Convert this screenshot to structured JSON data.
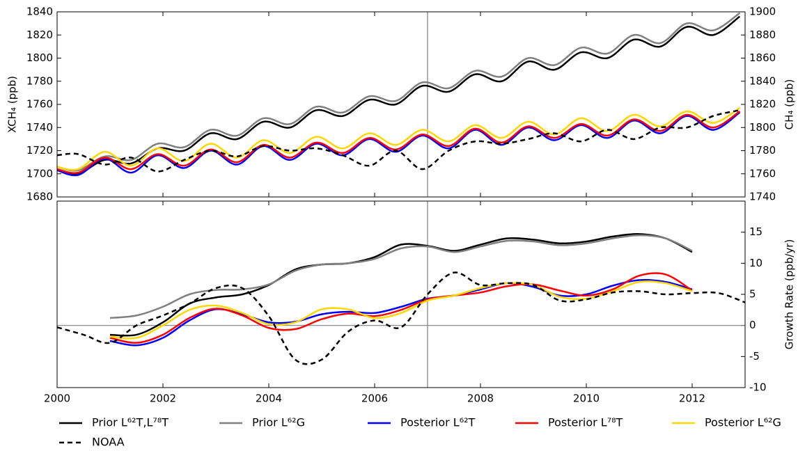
{
  "chart_data": [
    {
      "type": "line",
      "ylabel": "XCH₄ (ppb)",
      "y2label": "CH₄ (ppb)",
      "xlim": [
        2000,
        2013
      ],
      "xticks": [
        2000,
        2002,
        2004,
        2006,
        2008,
        2010,
        2012
      ],
      "show_xtick_labels": false,
      "ylim": [
        1680,
        1840
      ],
      "yticks": [
        1680,
        1700,
        1720,
        1740,
        1760,
        1780,
        1800,
        1820,
        1840
      ],
      "y2lim": [
        1740,
        1900
      ],
      "y2ticks": [
        1740,
        1760,
        1780,
        1800,
        1820,
        1840,
        1860,
        1880,
        1900
      ],
      "vline": 2007,
      "x": [
        2000.0,
        2000.4,
        2000.9,
        2001.4,
        2001.9,
        2002.4,
        2002.9,
        2003.4,
        2003.9,
        2004.4,
        2004.9,
        2005.4,
        2005.9,
        2006.4,
        2006.9,
        2007.4,
        2007.9,
        2008.4,
        2008.9,
        2009.4,
        2009.9,
        2010.4,
        2010.9,
        2011.4,
        2011.9,
        2012.4,
        2012.9
      ],
      "legend": "below",
      "series": [
        {
          "name": "Prior L⁶²T,L⁷⁸T",
          "color": "#000000",
          "dash": false,
          "values": [
            1703,
            1700,
            1712,
            1709,
            1722,
            1720,
            1735,
            1730,
            1745,
            1740,
            1755,
            1750,
            1764,
            1760,
            1776,
            1771,
            1786,
            1780,
            1797,
            1790,
            1805,
            1800,
            1816,
            1810,
            1827,
            1820,
            1836
          ]
        },
        {
          "name": "Prior L⁶²G",
          "color": "#808080",
          "dash": false,
          "values": [
            1706,
            1703,
            1715,
            1712,
            1726,
            1723,
            1738,
            1733,
            1748,
            1743,
            1758,
            1753,
            1767,
            1763,
            1779,
            1774,
            1789,
            1784,
            1800,
            1794,
            1809,
            1804,
            1820,
            1813,
            1830,
            1824,
            1839
          ]
        },
        {
          "name": "Posterior L⁶²T",
          "color": "#0000ff",
          "dash": false,
          "values": [
            1703,
            1699,
            1713,
            1701,
            1716,
            1705,
            1720,
            1708,
            1724,
            1712,
            1726,
            1716,
            1730,
            1719,
            1733,
            1722,
            1738,
            1725,
            1740,
            1729,
            1742,
            1731,
            1746,
            1735,
            1750,
            1738,
            1753
          ]
        },
        {
          "name": "Posterior L⁷⁸T",
          "color": "#ff0000",
          "dash": false,
          "values": [
            1704,
            1701,
            1714,
            1704,
            1717,
            1707,
            1721,
            1710,
            1725,
            1714,
            1727,
            1718,
            1731,
            1721,
            1734,
            1724,
            1739,
            1727,
            1741,
            1731,
            1743,
            1733,
            1747,
            1737,
            1751,
            1740,
            1754
          ]
        },
        {
          "name": "Posterior L⁶²G",
          "color": "#ffd700",
          "dash": false,
          "values": [
            1706,
            1704,
            1719,
            1707,
            1722,
            1711,
            1726,
            1714,
            1729,
            1718,
            1732,
            1722,
            1735,
            1725,
            1738,
            1728,
            1742,
            1731,
            1745,
            1734,
            1748,
            1737,
            1751,
            1741,
            1754,
            1744,
            1757
          ]
        },
        {
          "name": "NOAA",
          "color": "#000000",
          "dash": true,
          "axis": "y2",
          "values": [
            1776,
            1777,
            1768,
            1774,
            1762,
            1772,
            1780,
            1775,
            1784,
            1780,
            1782,
            1776,
            1767,
            1780,
            1764,
            1780,
            1788,
            1786,
            1790,
            1795,
            1788,
            1798,
            1790,
            1800,
            1800,
            1810,
            1815
          ]
        }
      ]
    },
    {
      "type": "line",
      "y2label": "Growth Rate (ppb/yr)",
      "xlim": [
        2000,
        2013
      ],
      "xticks": [
        2000,
        2002,
        2004,
        2006,
        2008,
        2010,
        2012
      ],
      "show_xtick_labels": true,
      "y2lim": [
        -10,
        20
      ],
      "y2ticks": [
        -10,
        -5,
        0,
        5,
        10,
        15
      ],
      "vline": 2007,
      "hline": 0,
      "x": [
        2000.0,
        2000.5,
        2001.0,
        2001.5,
        2002.0,
        2002.5,
        2003.0,
        2003.5,
        2004.0,
        2004.5,
        2005.0,
        2005.5,
        2006.0,
        2006.5,
        2007.0,
        2007.5,
        2008.0,
        2008.5,
        2009.0,
        2009.5,
        2010.0,
        2010.5,
        2011.0,
        2011.5,
        2012.0,
        2012.5,
        2013.0
      ],
      "series": [
        {
          "color": "#000000",
          "dash": false,
          "axis": "y2",
          "values": [
            null,
            null,
            -1.5,
            -1.5,
            0.5,
            3.5,
            4.5,
            5,
            6.5,
            9,
            9.8,
            10,
            11,
            13,
            12.8,
            12,
            13,
            14,
            13.8,
            13.2,
            13.5,
            14.3,
            14.7,
            14,
            11.8,
            null,
            null
          ]
        },
        {
          "color": "#808080",
          "dash": false,
          "axis": "y2",
          "values": [
            null,
            null,
            1.2,
            1.6,
            3,
            5,
            5.7,
            5.8,
            6.6,
            8.8,
            9.8,
            10,
            10.7,
            12.4,
            12.7,
            11.8,
            12.7,
            13.6,
            13.5,
            12.9,
            13.2,
            14,
            14.5,
            14,
            12,
            null,
            null
          ]
        },
        {
          "color": "#0000ff",
          "dash": false,
          "axis": "y2",
          "values": [
            null,
            null,
            -2.5,
            -3.2,
            -2,
            0.8,
            2.6,
            1.8,
            0.5,
            0.6,
            1.8,
            2.2,
            2,
            3,
            4.3,
            4.8,
            5.8,
            6.8,
            6.2,
            4.8,
            5,
            6.4,
            7.3,
            7,
            5.8,
            null,
            null
          ]
        },
        {
          "color": "#ff0000",
          "dash": false,
          "axis": "y2",
          "values": [
            null,
            null,
            -2,
            -2.8,
            -1.5,
            1.2,
            2.7,
            1.6,
            -0.4,
            -0.6,
            1,
            1.9,
            1.5,
            2.5,
            4.2,
            4.8,
            5.3,
            6.3,
            6.6,
            5.6,
            4.8,
            5.8,
            8,
            8.2,
            5.6,
            null,
            null
          ]
        },
        {
          "color": "#ffd700",
          "dash": false,
          "axis": "y2",
          "values": [
            null,
            null,
            -1.8,
            -2,
            0,
            2.5,
            3.2,
            2,
            0.2,
            0.5,
            2.6,
            2.6,
            1.2,
            2,
            4,
            4.8,
            6,
            6.8,
            6.5,
            4.6,
            4.3,
            5.5,
            7,
            6.8,
            5.5,
            null,
            null
          ]
        },
        {
          "color": "#000000",
          "dash": true,
          "axis": "y2",
          "values": [
            -0.3,
            -1.5,
            -2.8,
            0,
            1.6,
            3.5,
            6,
            6,
            1.5,
            -5.5,
            -5.5,
            -1,
            0.8,
            -0.3,
            5,
            8.5,
            6.5,
            6.8,
            6.5,
            4,
            4.2,
            5.3,
            5.5,
            5,
            5.2,
            5.2,
            3.7
          ]
        }
      ]
    }
  ]
}
